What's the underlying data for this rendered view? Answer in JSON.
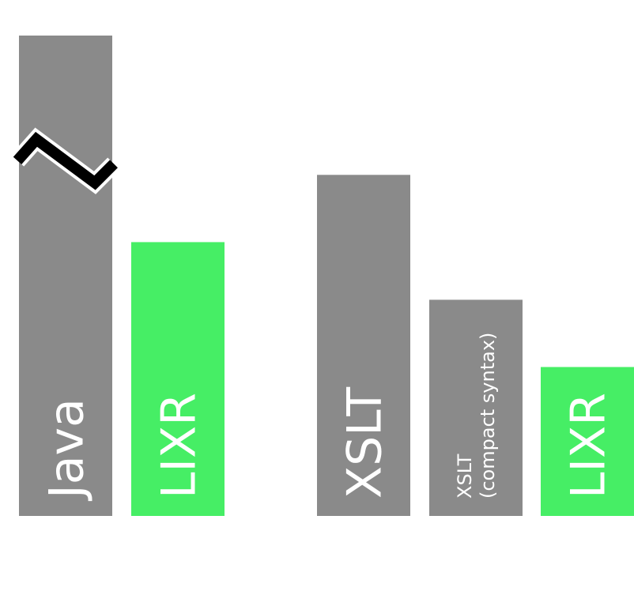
{
  "chart_data": {
    "type": "bar",
    "title": "",
    "xlabel": "",
    "ylabel": "",
    "ylim": [
      0,
      100
    ],
    "axis_break_on": "Java",
    "colors": {
      "other": "#8a8a8a",
      "lixr": "#46ee65",
      "break": "#000000"
    },
    "bars": [
      {
        "label": "Java",
        "value": 100,
        "group": 1,
        "color": "#8a8a8a",
        "truncated": true
      },
      {
        "label": "LIXR",
        "value": 57,
        "group": 1,
        "color": "#46ee65"
      },
      {
        "label": "XSLT",
        "value": 71,
        "group": 2,
        "color": "#8a8a8a"
      },
      {
        "label": "XSLT\n(compact syntax)",
        "value": 45,
        "group": 2,
        "color": "#8a8a8a"
      },
      {
        "label": "LIXR",
        "value": 31,
        "group": 2,
        "color": "#46ee65"
      }
    ]
  }
}
